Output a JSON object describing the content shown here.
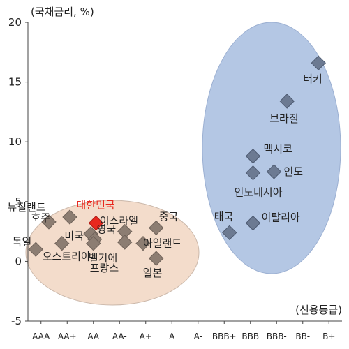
{
  "chart_data": {
    "type": "scatter",
    "title": "",
    "ylabel": "(국채금리, %)",
    "xlabel": "(신용등급)",
    "ylim": [
      -5,
      20
    ],
    "yticks": [
      -5,
      0,
      5,
      10,
      15,
      20
    ],
    "categories": [
      "AAA",
      "AA+",
      "AA",
      "AA-",
      "A+",
      "A",
      "A-",
      "BBB+",
      "BBB",
      "BBB-",
      "BB-",
      "B+"
    ],
    "highlight_color": "#e8281e",
    "point_color": "#8c7d72",
    "group_colors": {
      "advanced": "#f3dccb",
      "emerging": "#b4c7e4"
    },
    "points": [
      {
        "label": "뉴질랜드",
        "x": 0.3,
        "y": 3.3,
        "group": "advanced"
      },
      {
        "label": "호주",
        "x": 1.1,
        "y": 3.7,
        "group": "advanced"
      },
      {
        "label": "독일",
        "x": -0.2,
        "y": 1.0,
        "group": "advanced"
      },
      {
        "label": "오스트리아",
        "x": 0.8,
        "y": 1.5,
        "group": "advanced"
      },
      {
        "label": "미국",
        "x": 1.9,
        "y": 2.3,
        "group": "advanced"
      },
      {
        "label": "대한민국",
        "x": 2.1,
        "y": 3.2,
        "group": "advanced",
        "highlight": true
      },
      {
        "label": "영국",
        "x": 2.05,
        "y": 1.85,
        "group": "advanced"
      },
      {
        "label": "벨기에",
        "x": 2.0,
        "y": 1.5,
        "group": "advanced"
      },
      {
        "label": "이스라엘",
        "x": 3.2,
        "y": 2.5,
        "group": "advanced"
      },
      {
        "label": "프랑스",
        "x": 3.2,
        "y": 1.6,
        "group": "advanced"
      },
      {
        "label": "중국",
        "x": 4.4,
        "y": 2.8,
        "group": "advanced"
      },
      {
        "label": "아일랜드",
        "x": 3.9,
        "y": 1.5,
        "group": "advanced"
      },
      {
        "label": "일본",
        "x": 4.4,
        "y": 0.25,
        "group": "advanced"
      },
      {
        "label": "터키",
        "x": 10.6,
        "y": 16.6,
        "group": "emerging"
      },
      {
        "label": "브라질",
        "x": 9.4,
        "y": 13.4,
        "group": "emerging"
      },
      {
        "label": "멕시코",
        "x": 8.1,
        "y": 8.8,
        "group": "emerging"
      },
      {
        "label": "인도",
        "x": 8.9,
        "y": 7.5,
        "group": "emerging"
      },
      {
        "label": "인도네시아",
        "x": 8.1,
        "y": 7.4,
        "group": "emerging"
      },
      {
        "label": "태국",
        "x": 7.2,
        "y": 2.4,
        "group": "emerging"
      },
      {
        "label": "이탈리아",
        "x": 8.1,
        "y": 3.2,
        "group": "emerging"
      }
    ]
  }
}
